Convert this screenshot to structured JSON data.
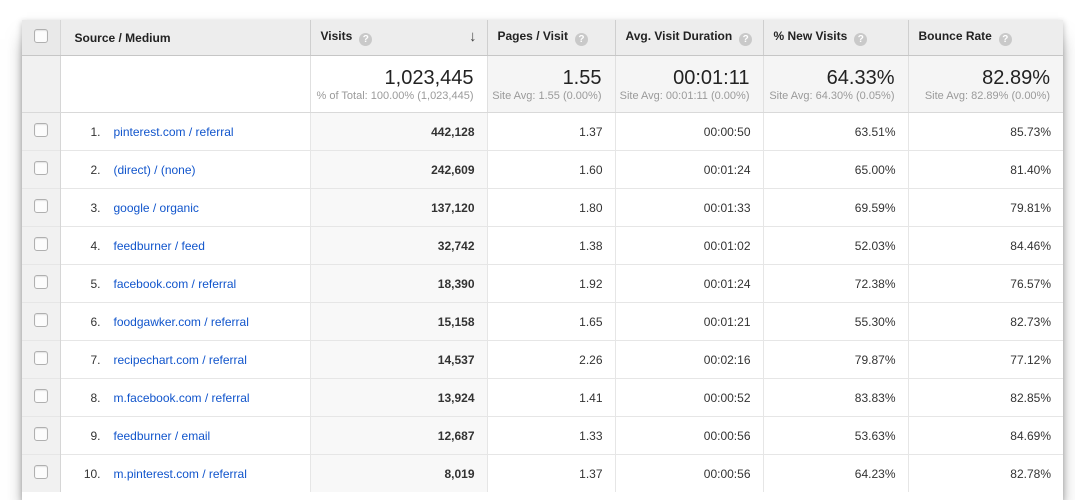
{
  "table": {
    "columns": [
      {
        "id": "source",
        "label": "Source / Medium"
      },
      {
        "id": "visits",
        "label": "Visits",
        "help": "?",
        "sort": "↓"
      },
      {
        "id": "pages",
        "label": "Pages / Visit",
        "help": "?"
      },
      {
        "id": "duration",
        "label": "Avg. Visit Duration",
        "help": "?"
      },
      {
        "id": "new_visits",
        "label": "% New Visits",
        "help": "?"
      },
      {
        "id": "bounce",
        "label": "Bounce Rate",
        "help": "?"
      }
    ],
    "summary": {
      "visits": "1,023,445",
      "visits_note": "% of Total: 100.00% (1,023,445)",
      "pages": "1.55",
      "pages_note": "Site Avg: 1.55 (0.00%)",
      "duration": "00:01:11",
      "duration_note": "Site Avg: 00:01:11 (0.00%)",
      "new_visits": "64.33%",
      "new_visits_note": "Site Avg: 64.30% (0.05%)",
      "bounce": "82.89%",
      "bounce_note": "Site Avg: 82.89% (0.00%)"
    },
    "rows": [
      {
        "rank": "1.",
        "source": "pinterest.com / referral",
        "visits": "442,128",
        "pages": "1.37",
        "duration": "00:00:50",
        "new_visits": "63.51%",
        "bounce": "85.73%"
      },
      {
        "rank": "2.",
        "source": "(direct) / (none)",
        "visits": "242,609",
        "pages": "1.60",
        "duration": "00:01:24",
        "new_visits": "65.00%",
        "bounce": "81.40%"
      },
      {
        "rank": "3.",
        "source": "google / organic",
        "visits": "137,120",
        "pages": "1.80",
        "duration": "00:01:33",
        "new_visits": "69.59%",
        "bounce": "79.81%"
      },
      {
        "rank": "4.",
        "source": "feedburner / feed",
        "visits": "32,742",
        "pages": "1.38",
        "duration": "00:01:02",
        "new_visits": "52.03%",
        "bounce": "84.46%"
      },
      {
        "rank": "5.",
        "source": "facebook.com / referral",
        "visits": "18,390",
        "pages": "1.92",
        "duration": "00:01:24",
        "new_visits": "72.38%",
        "bounce": "76.57%"
      },
      {
        "rank": "6.",
        "source": "foodgawker.com / referral",
        "visits": "15,158",
        "pages": "1.65",
        "duration": "00:01:21",
        "new_visits": "55.30%",
        "bounce": "82.73%"
      },
      {
        "rank": "7.",
        "source": "recipechart.com / referral",
        "visits": "14,537",
        "pages": "2.26",
        "duration": "00:02:16",
        "new_visits": "79.87%",
        "bounce": "77.12%"
      },
      {
        "rank": "8.",
        "source": "m.facebook.com / referral",
        "visits": "13,924",
        "pages": "1.41",
        "duration": "00:00:52",
        "new_visits": "83.83%",
        "bounce": "82.85%"
      },
      {
        "rank": "9.",
        "source": "feedburner / email",
        "visits": "12,687",
        "pages": "1.33",
        "duration": "00:00:56",
        "new_visits": "53.63%",
        "bounce": "84.69%"
      },
      {
        "rank": "10.",
        "source": "m.pinterest.com / referral",
        "visits": "8,019",
        "pages": "1.37",
        "duration": "00:00:56",
        "new_visits": "64.23%",
        "bounce": "82.78%"
      }
    ]
  },
  "colors": {
    "link": "#1155cc",
    "header_bg": "#ededed",
    "sorted_col_bg": "#f8f8f8"
  }
}
